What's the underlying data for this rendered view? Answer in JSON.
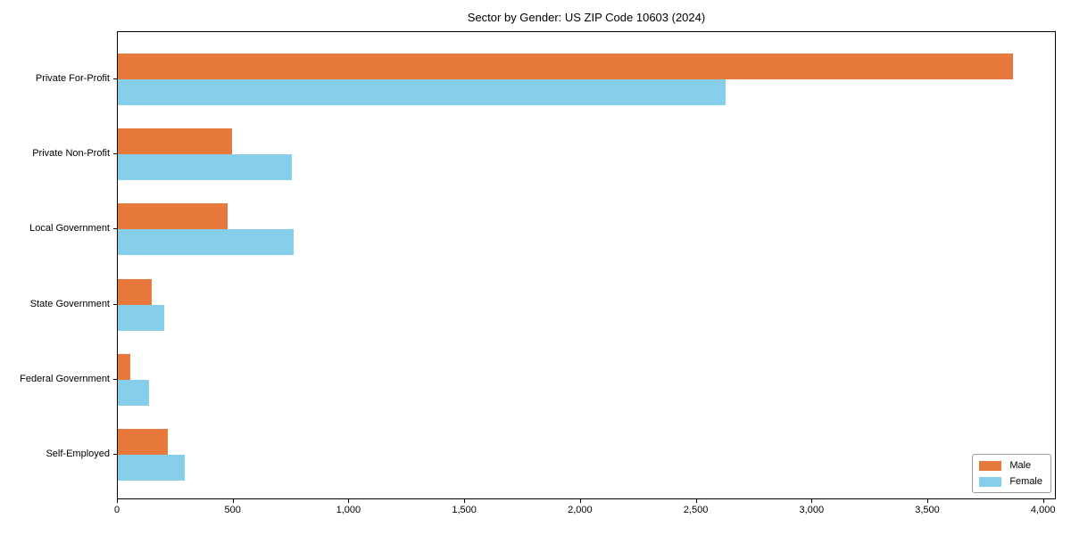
{
  "chart_data": {
    "type": "bar",
    "orientation": "horizontal",
    "title": "Sector by Gender: US ZIP Code 10603 (2024)",
    "categories": [
      "Private For-Profit",
      "Private Non-Profit",
      "Local Government",
      "State Government",
      "Federal Government",
      "Self-Employed"
    ],
    "series": [
      {
        "name": "Male",
        "color": "#e8793d",
        "values": [
          3865,
          495,
          475,
          145,
          55,
          215
        ]
      },
      {
        "name": "Female",
        "color": "#87ceeb",
        "values": [
          2625,
          750,
          760,
          200,
          135,
          290
        ]
      }
    ],
    "xlim": [
      0,
      4055
    ],
    "x_ticks": [
      0,
      500,
      1000,
      1500,
      2000,
      2500,
      3000,
      3500,
      4000
    ],
    "x_tick_labels": [
      "0",
      "500",
      "1,000",
      "1,500",
      "2,000",
      "2,500",
      "3,000",
      "3,500",
      "4,000"
    ],
    "xlabel": "",
    "ylabel": "",
    "grid": false,
    "legend_position": "lower right",
    "frame": "full-box"
  }
}
